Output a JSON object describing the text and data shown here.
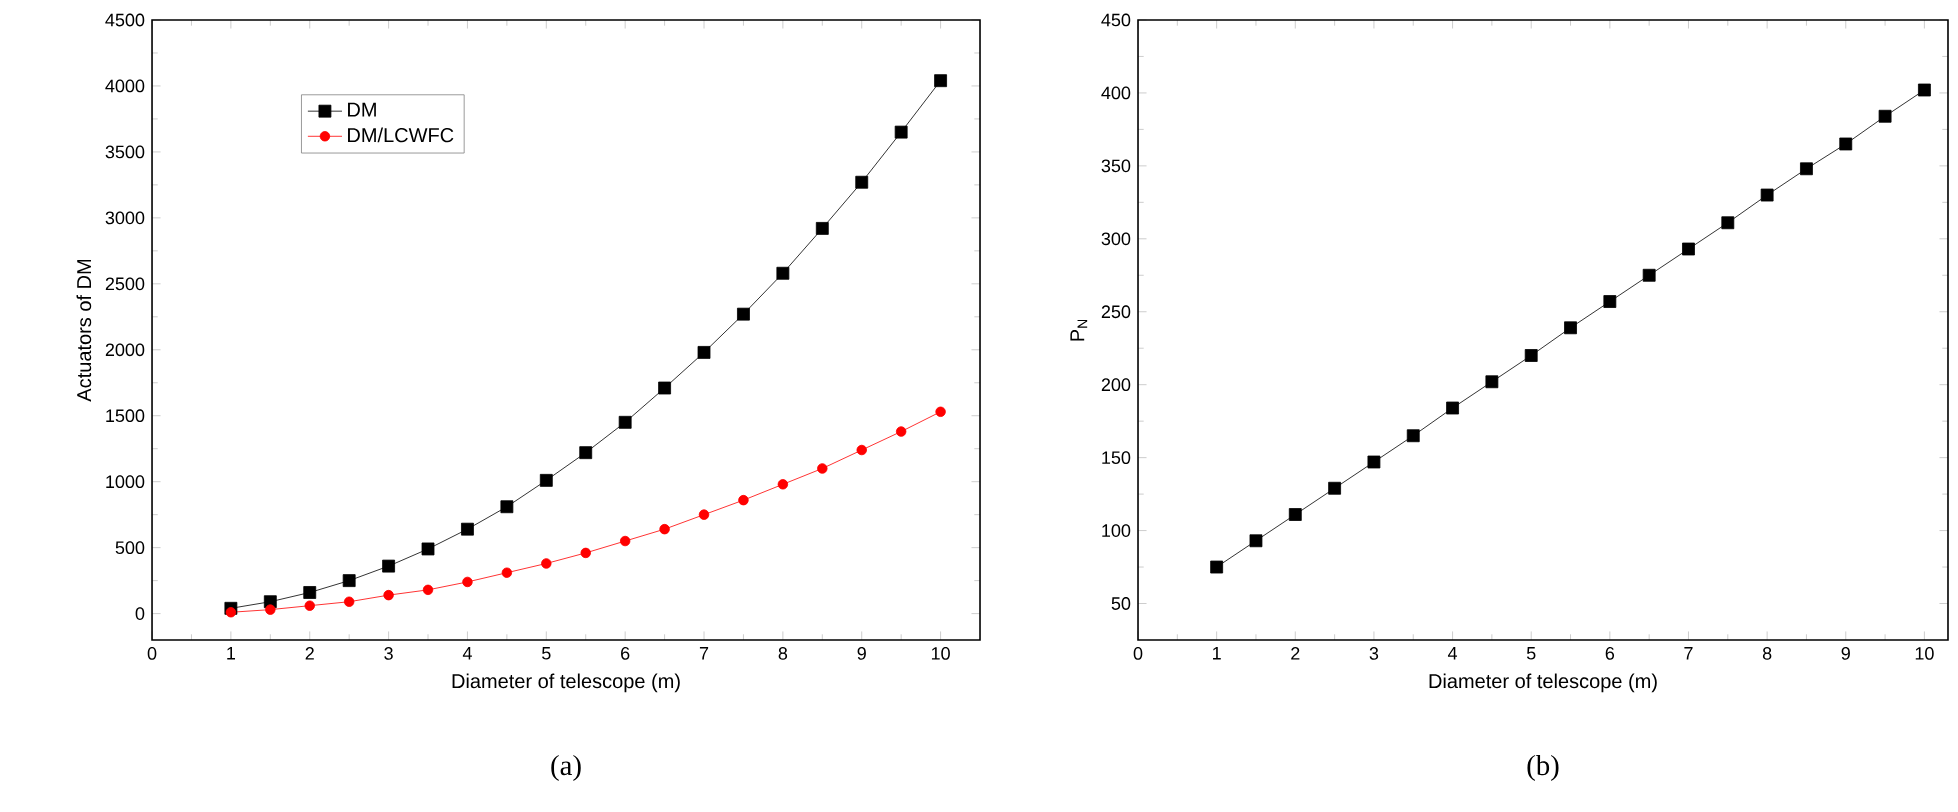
{
  "chart_data": [
    {
      "type": "line",
      "xlabel": "Diameter of telescope (m)",
      "ylabel": "Actuators of DM",
      "annotations": [
        "(a)"
      ],
      "x": [
        1,
        1.5,
        2,
        2.5,
        3,
        3.5,
        4,
        4.5,
        5,
        5.5,
        6,
        6.5,
        7,
        7.5,
        8,
        8.5,
        9,
        9.5,
        10
      ],
      "series": [
        {
          "name": "DM",
          "color": "#000000",
          "marker": "square",
          "values": [
            40,
            90,
            160,
            250,
            360,
            490,
            640,
            810,
            1010,
            1220,
            1450,
            1710,
            1980,
            2270,
            2580,
            2920,
            3270,
            3650,
            4040
          ]
        },
        {
          "name": "DM/LCWFC",
          "color": "#ff0000",
          "marker": "circle",
          "values": [
            10,
            30,
            60,
            90,
            140,
            180,
            240,
            310,
            380,
            460,
            550,
            640,
            750,
            860,
            980,
            1100,
            1240,
            1380,
            1530
          ]
        }
      ],
      "xlim": [
        0,
        10.5
      ],
      "xticks": [
        0,
        1,
        2,
        3,
        4,
        5,
        6,
        7,
        8,
        9,
        10
      ],
      "ylim": [
        -200,
        4500
      ],
      "yticks": [
        0,
        500,
        1000,
        1500,
        2000,
        2500,
        3000,
        3500,
        4000,
        4500
      ],
      "legend": "top left",
      "grid": false
    },
    {
      "type": "line",
      "xlabel": "Diameter of telescope (m)",
      "ylabel": "P$_{N}$",
      "annotations": [
        "(b)"
      ],
      "x": [
        1,
        1.5,
        2,
        2.5,
        3,
        3.5,
        4,
        4.5,
        5,
        5.5,
        6,
        6.5,
        7,
        7.5,
        8,
        8.5,
        9,
        9.5,
        10
      ],
      "series": [
        {
          "color": "#000000",
          "marker": "square",
          "values": [
            75,
            93,
            111,
            129,
            147,
            165,
            184,
            202,
            220,
            239,
            257,
            275,
            293,
            311,
            330,
            348,
            365,
            384,
            402
          ]
        }
      ],
      "xlim": [
        0,
        10.3
      ],
      "xticks": [
        0,
        1,
        2,
        3,
        4,
        5,
        6,
        7,
        8,
        9,
        10
      ],
      "ylim": [
        25,
        450
      ],
      "yticks": [
        50,
        100,
        150,
        200,
        250,
        300,
        350,
        400,
        450
      ],
      "legend": false,
      "grid": false
    }
  ]
}
